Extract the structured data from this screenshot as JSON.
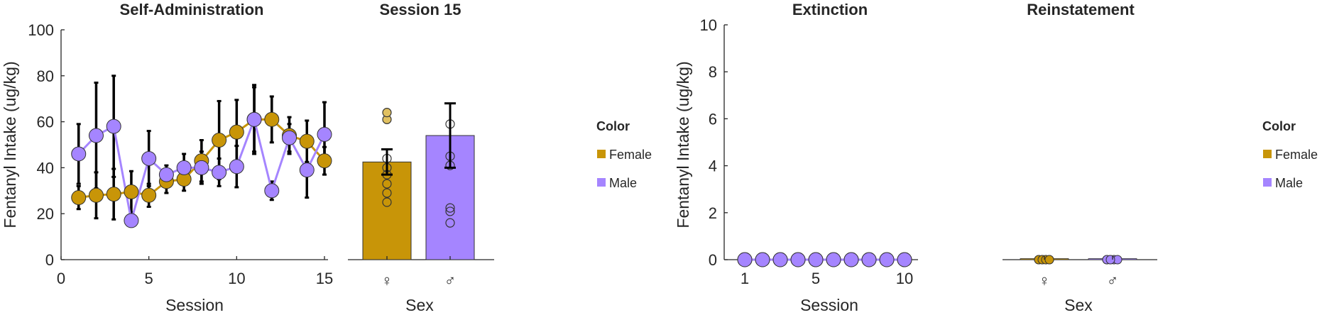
{
  "colors": {
    "female": "#C89508",
    "male": "#A585FF",
    "errorbar": "#000000",
    "axis": "#262626",
    "female_point_light": "#E0C060"
  },
  "legends": [
    {
      "title": "Color",
      "items": [
        "Female",
        "Male"
      ]
    },
    {
      "title": "Color",
      "items": [
        "Female",
        "Male"
      ]
    }
  ],
  "chart_data": [
    {
      "id": "self_admin",
      "type": "line",
      "title": "Self-Administration",
      "xlabel": "Session",
      "ylabel": "Fentanyl Intake (ug/kg)",
      "xlim": [
        0,
        15.5
      ],
      "ylim": [
        0,
        100
      ],
      "xticks": [
        0,
        5,
        10,
        15
      ],
      "yticks": [
        0,
        20,
        40,
        60,
        80,
        100
      ],
      "x": [
        1,
        2,
        3,
        4,
        5,
        6,
        7,
        8,
        9,
        10,
        11,
        12,
        13,
        14,
        15
      ],
      "series": [
        {
          "name": "Female",
          "values": [
            27,
            28,
            28.5,
            29.5,
            28,
            34,
            35,
            43,
            52,
            55.5,
            61,
            61,
            54,
            51.5,
            43
          ],
          "err": [
            5,
            10,
            11,
            9,
            5,
            5,
            5,
            9,
            17,
            14,
            14,
            10,
            8,
            9,
            6
          ]
        },
        {
          "name": "Male",
          "values": [
            46,
            54,
            58,
            17,
            44,
            37,
            40,
            40,
            38,
            40.5,
            61,
            30,
            53,
            39,
            54.5
          ],
          "err": [
            13,
            23,
            22,
            2,
            12,
            4,
            6,
            7,
            6,
            9,
            15,
            4,
            6,
            12,
            14
          ]
        }
      ]
    },
    {
      "id": "session15",
      "type": "bar",
      "title": "Session 15",
      "xlabel": "Sex",
      "ylim": [
        0,
        100
      ],
      "categories": [
        "♀",
        "♂"
      ],
      "values": [
        42.5,
        54
      ],
      "err": [
        5.5,
        14
      ],
      "points": [
        [
          25,
          29,
          33,
          37,
          40,
          44,
          61,
          64
        ],
        [
          16,
          21,
          22.5,
          41,
          45,
          59
        ]
      ]
    },
    {
      "id": "extinction",
      "type": "line",
      "title": "Extinction",
      "xlabel": "Session",
      "ylabel": "Fentanyl Intake (ug/kg)",
      "xlim": [
        0.5,
        10.5
      ],
      "ylim": [
        0,
        10
      ],
      "xticks": [
        1,
        5,
        10
      ],
      "yticks": [
        0,
        2,
        4,
        6,
        8,
        10
      ],
      "x": [
        1,
        2,
        3,
        4,
        5,
        6,
        7,
        8,
        9,
        10
      ],
      "series": [
        {
          "name": "Female",
          "values": [
            0,
            0,
            0,
            0,
            0,
            0,
            0,
            0,
            0,
            0
          ]
        },
        {
          "name": "Male",
          "values": [
            0,
            0,
            0,
            0,
            0,
            0,
            0,
            0,
            0,
            0
          ]
        }
      ]
    },
    {
      "id": "reinstatement",
      "type": "bar",
      "title": "Reinstatement",
      "xlabel": "Sex",
      "ylim": [
        0,
        10
      ],
      "categories": [
        "♀",
        "♂"
      ],
      "values": [
        0,
        0
      ],
      "points": [
        [
          0,
          0,
          0,
          0,
          0,
          0,
          0,
          0
        ],
        [
          0,
          0,
          0,
          0,
          0,
          0
        ]
      ]
    }
  ]
}
